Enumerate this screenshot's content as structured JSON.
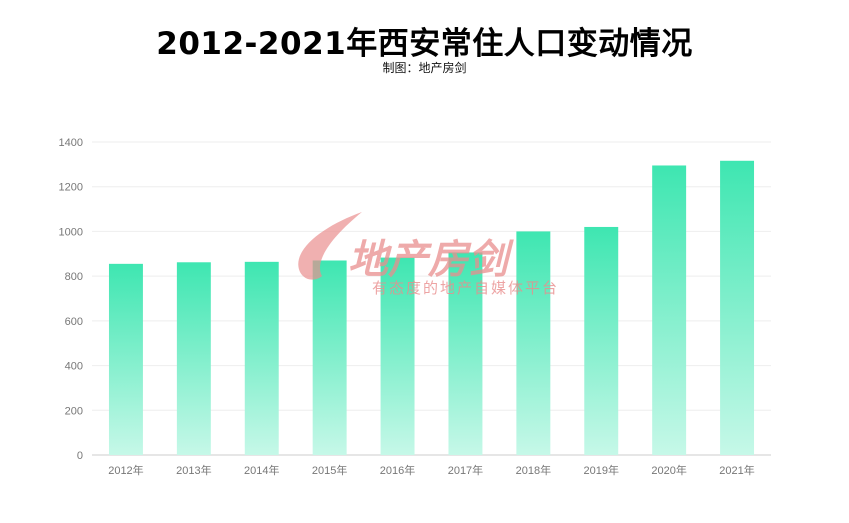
{
  "chart_data": {
    "type": "bar",
    "title": "2012-2021年西安常住人口变动情况",
    "subtitle": "制图：地产房剑",
    "xlabel": "",
    "ylabel": "",
    "categories": [
      "2012年",
      "2013年",
      "2014年",
      "2015年",
      "2016年",
      "2017年",
      "2018年",
      "2019年",
      "2020年",
      "2021年"
    ],
    "values": [
      855,
      862,
      864,
      870,
      883,
      906,
      1000,
      1020,
      1295,
      1316
    ],
    "ylim": [
      0,
      1400
    ],
    "yticks": [
      "0",
      "200",
      "400",
      "600",
      "800",
      "1000",
      "1200",
      "1400"
    ],
    "grid": true,
    "legend": "none",
    "colors": {
      "bar_top": "#3ee6b1",
      "bar_bottom": "#c6f8e8"
    }
  },
  "watermark": {
    "main": "地产房剑",
    "sub": "有态度的地产自媒体平台"
  }
}
